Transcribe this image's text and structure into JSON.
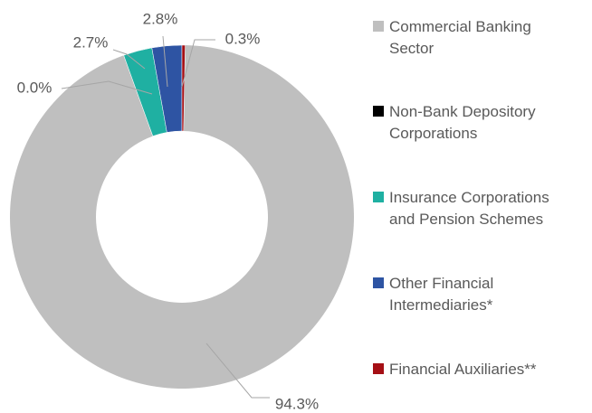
{
  "chart_data": {
    "type": "donut",
    "categories": [
      "Commercial Banking Sector",
      "Non-Bank Depository Corporations",
      "Insurance Corporations and Pension Schemes",
      "Other Financial Intermediaries*",
      "Financial Auxiliaries**"
    ],
    "values": [
      94.3,
      0.0,
      2.7,
      2.8,
      0.3
    ],
    "value_labels": [
      "94.3%",
      "0.0%",
      "2.7%",
      "2.8%",
      "0.3%"
    ],
    "colors": [
      "#bfbfbf",
      "#000000",
      "#1fb0a2",
      "#2e54a3",
      "#a50f15"
    ],
    "legend": "right"
  }
}
